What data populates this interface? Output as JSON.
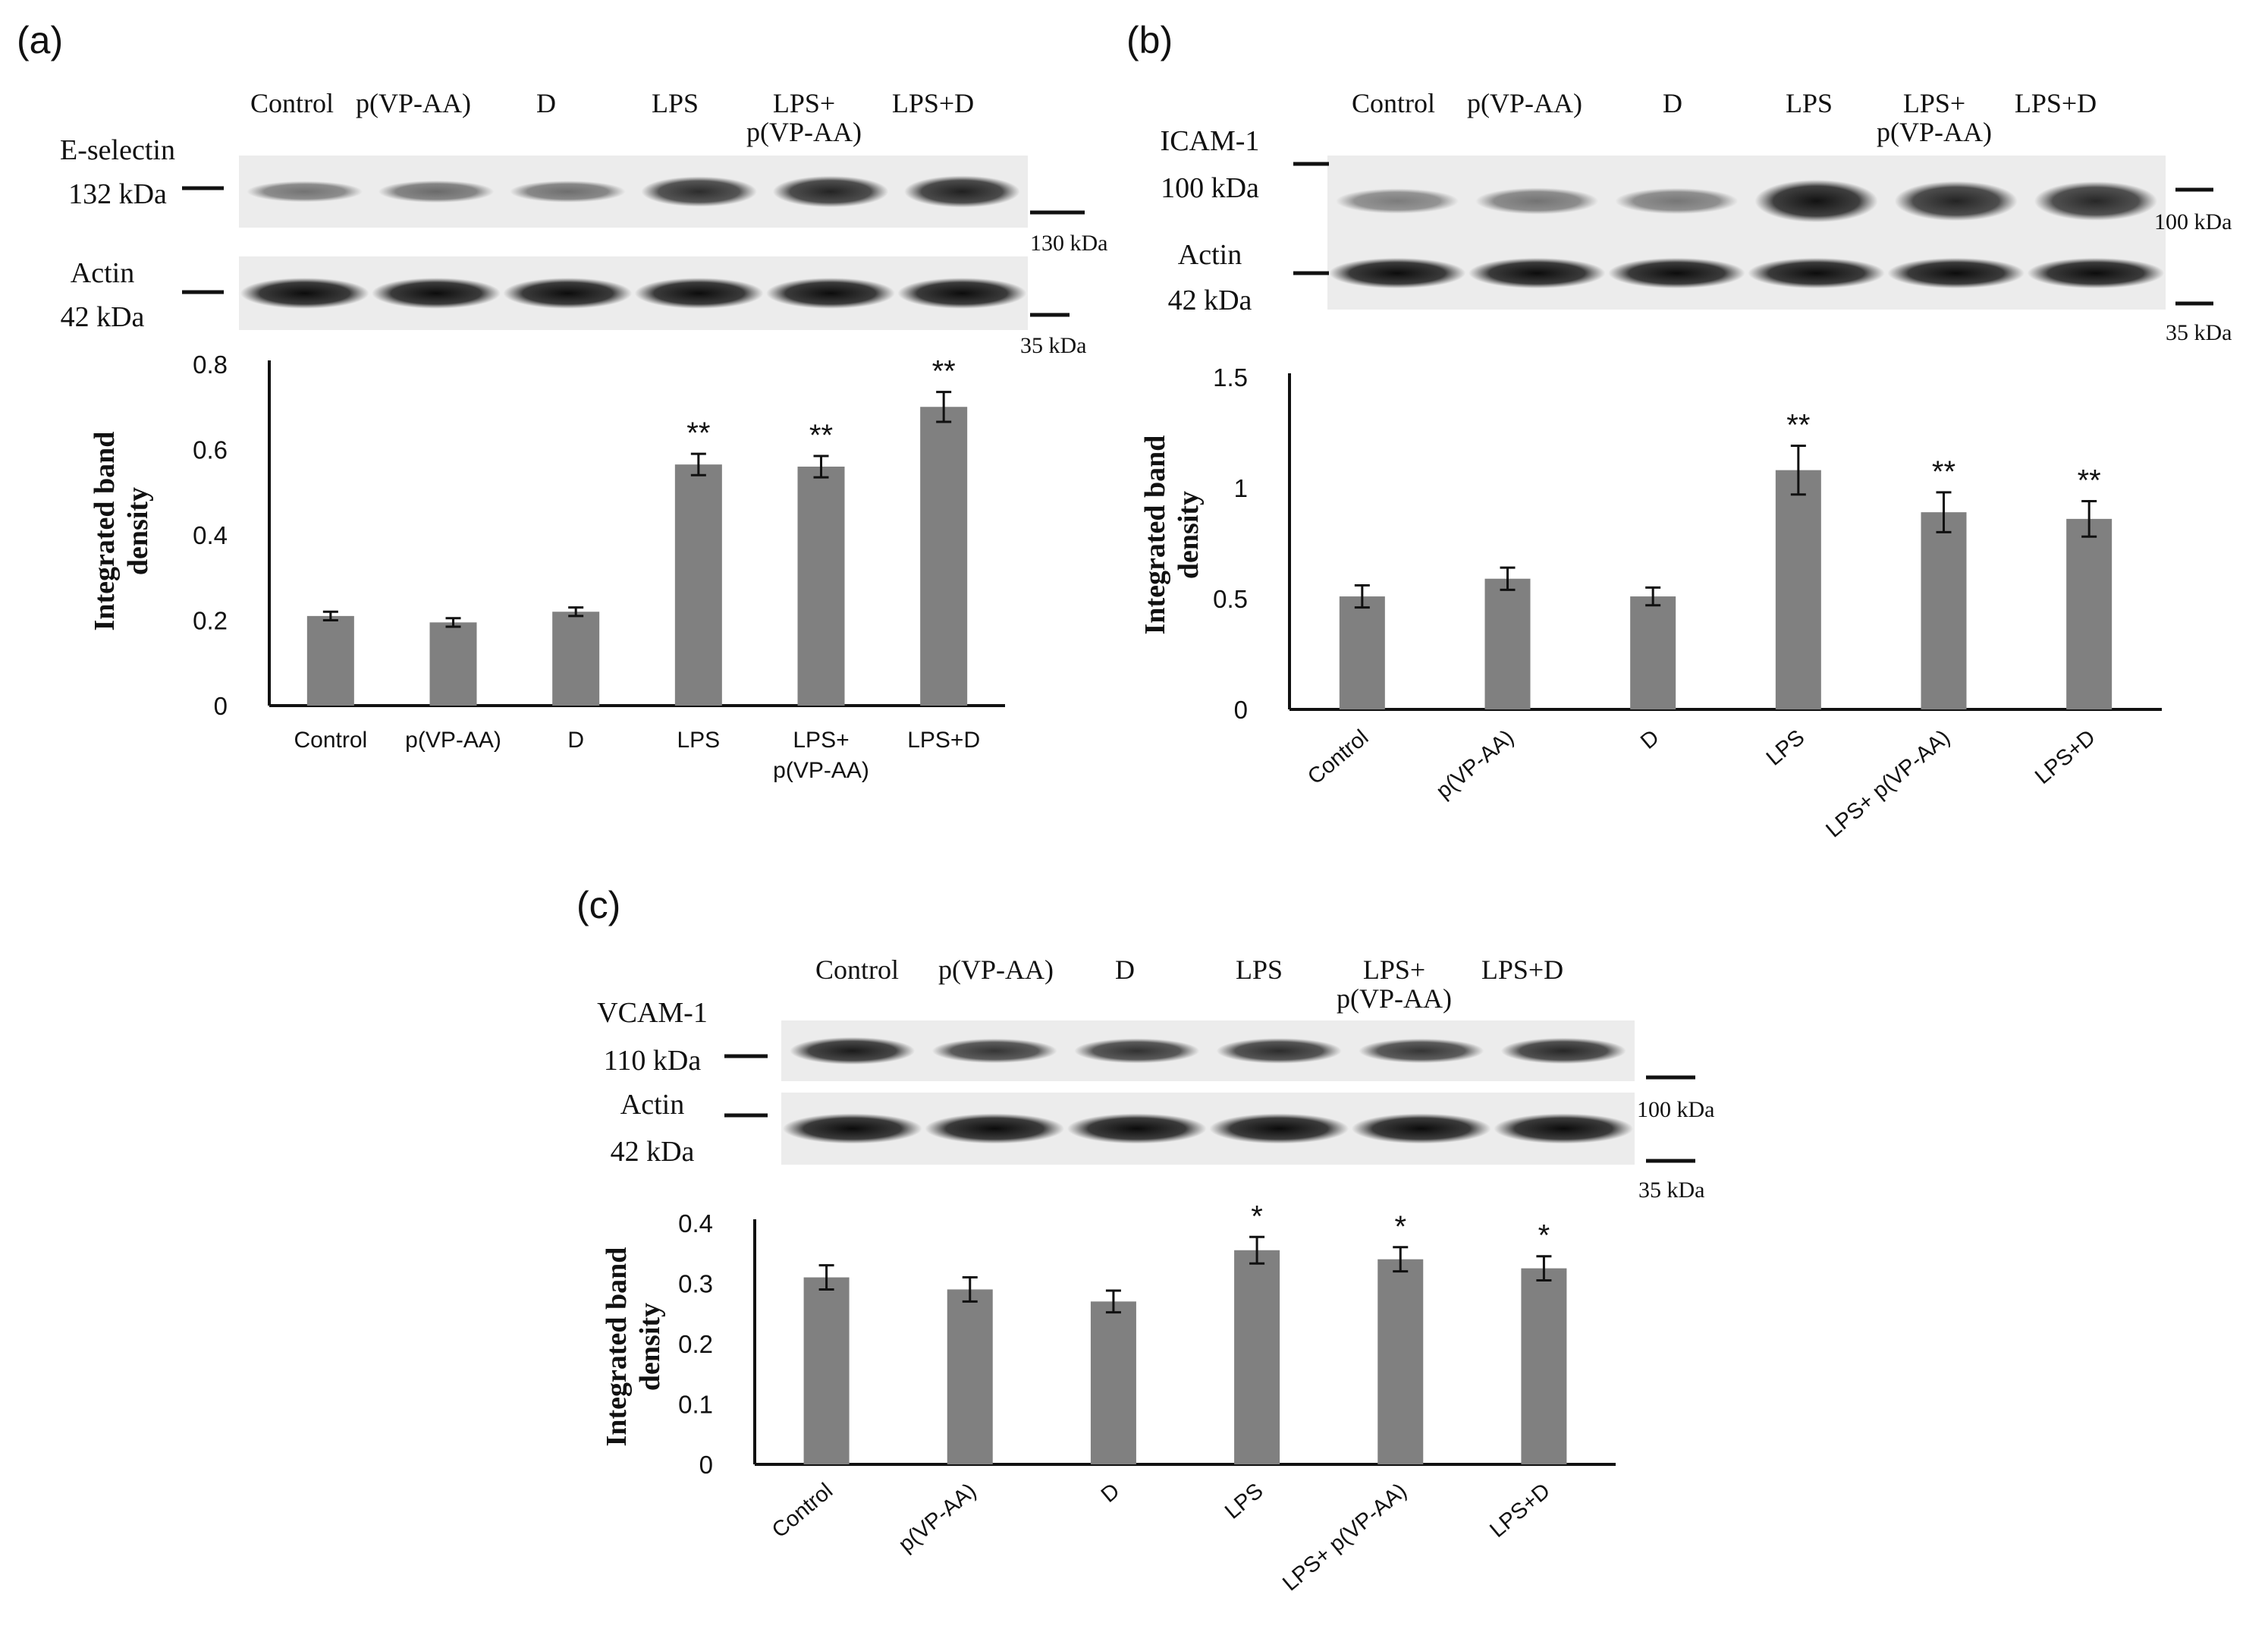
{
  "chart_data": [
    {
      "panel": "(a)",
      "type": "bar",
      "blot": {
        "lanes": [
          "Control",
          "p(VP-AA)",
          "D",
          "LPS",
          "LPS+\np(VP-AA)",
          "LPS+D"
        ],
        "target_name": "E-selectin",
        "target_kda": "132 kDa",
        "loading_name": "Actin",
        "loading_kda": "42 kDa",
        "marker_upper": "130 kDa",
        "marker_lower": "35 kDa",
        "target_intensity": [
          0.35,
          0.4,
          0.38,
          0.75,
          0.8,
          0.82
        ],
        "loading_intensity": [
          0.95,
          0.95,
          0.95,
          0.95,
          0.95,
          0.95
        ]
      },
      "categories": [
        "Control",
        "p(VP-AA)",
        "D",
        "LPS",
        "LPS+\np(VP-AA)",
        "LPS+D"
      ],
      "values": [
        0.21,
        0.195,
        0.22,
        0.565,
        0.56,
        0.7
      ],
      "errors": [
        0.01,
        0.01,
        0.01,
        0.025,
        0.025,
        0.035
      ],
      "significance": [
        "",
        "",
        "",
        "**",
        "**",
        "**"
      ],
      "ylabel": "Integrated band\ndensity",
      "ylim": [
        0,
        0.8
      ],
      "yticks": [
        "0",
        "0.2",
        "0.4",
        "0.6",
        "0.8"
      ],
      "ytick_values": [
        0,
        0.2,
        0.4,
        0.6,
        0.8
      ],
      "xtick_rotation": 0
    },
    {
      "panel": "(b)",
      "type": "bar",
      "blot": {
        "lanes": [
          "Control",
          "p(VP-AA)",
          "D",
          "LPS",
          "LPS+\np(VP-AA)",
          "LPS+D"
        ],
        "target_name": "ICAM-1",
        "target_kda": "100 kDa",
        "loading_name": "Actin",
        "loading_kda": "42 kDa",
        "marker_upper": "100 kDa",
        "marker_lower": "35 kDa",
        "target_intensity": [
          0.3,
          0.35,
          0.33,
          0.9,
          0.8,
          0.78
        ],
        "loading_intensity": [
          0.95,
          0.95,
          0.95,
          0.95,
          0.95,
          0.95
        ]
      },
      "categories": [
        "Control",
        "p(VP-AA)",
        "D",
        "LPS",
        "LPS+ p(VP-AA)",
        "LPS+D"
      ],
      "values": [
        0.51,
        0.59,
        0.51,
        1.08,
        0.89,
        0.86
      ],
      "errors": [
        0.05,
        0.05,
        0.04,
        0.11,
        0.09,
        0.08
      ],
      "significance": [
        "",
        "",
        "",
        "**",
        "**",
        "**"
      ],
      "ylabel": "Integrated band\ndensity",
      "ylim": [
        0,
        1.5
      ],
      "yticks": [
        "0",
        "0.5",
        "1",
        "1.5"
      ],
      "ytick_values": [
        0,
        0.5,
        1,
        1.5
      ],
      "xtick_rotation": -40
    },
    {
      "panel": "(c)",
      "type": "bar",
      "blot": {
        "lanes": [
          "Control",
          "p(VP-AA)",
          "D",
          "LPS",
          "LPS+\np(VP-AA)",
          "LPS+D"
        ],
        "target_name": "VCAM-1",
        "target_kda": "110 kDa",
        "loading_name": "Actin",
        "loading_kda": "42 kDa",
        "marker_upper": "100 kDa",
        "marker_lower": "35 kDa",
        "target_intensity": [
          0.85,
          0.7,
          0.72,
          0.75,
          0.7,
          0.78
        ],
        "loading_intensity": [
          0.95,
          0.95,
          0.95,
          0.95,
          0.95,
          0.95
        ]
      },
      "categories": [
        "Control",
        "p(VP-AA)",
        "D",
        "LPS",
        "LPS+ p(VP-AA)",
        "LPS+D"
      ],
      "values": [
        0.31,
        0.29,
        0.27,
        0.355,
        0.34,
        0.325
      ],
      "errors": [
        0.02,
        0.02,
        0.018,
        0.022,
        0.02,
        0.02
      ],
      "significance": [
        "",
        "",
        "",
        "*",
        "*",
        "*"
      ],
      "ylabel": "Integrated band\ndensity",
      "ylim": [
        0,
        0.4
      ],
      "yticks": [
        "0",
        "0.1",
        "0.2",
        "0.3",
        "0.4"
      ],
      "ytick_values": [
        0,
        0.1,
        0.2,
        0.3,
        0.4
      ],
      "xtick_rotation": -40
    }
  ],
  "colors": {
    "bar": "#808080",
    "axis": "#111111",
    "error": "#111111",
    "blot_bg": "#ececec",
    "band": "#111111"
  }
}
